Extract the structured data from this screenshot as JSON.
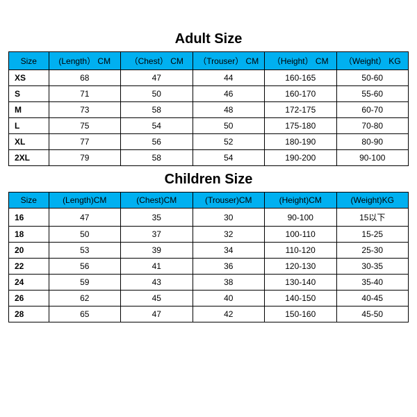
{
  "colors": {
    "header_bg": "#00b0f0",
    "border": "#000000",
    "text": "#000000",
    "background": "#ffffff"
  },
  "adult": {
    "title": "Adult Size",
    "columns": [
      "Size",
      "(Length） CM",
      "（Chest） CM",
      "（Trouser） CM",
      "（Height） CM",
      "（Weight） KG"
    ],
    "rows": [
      {
        "size": "XS",
        "length": "68",
        "chest": "47",
        "trouser": "44",
        "height": "160-165",
        "weight": "50-60"
      },
      {
        "size": "S",
        "length": "71",
        "chest": "50",
        "trouser": "46",
        "height": "160-170",
        "weight": "55-60"
      },
      {
        "size": "M",
        "length": "73",
        "chest": "58",
        "trouser": "48",
        "height": "172-175",
        "weight": "60-70"
      },
      {
        "size": "L",
        "length": "75",
        "chest": "54",
        "trouser": "50",
        "height": "175-180",
        "weight": "70-80"
      },
      {
        "size": "XL",
        "length": "77",
        "chest": "56",
        "trouser": "52",
        "height": "180-190",
        "weight": "80-90"
      },
      {
        "size": "2XL",
        "length": "79",
        "chest": "58",
        "trouser": "54",
        "height": "190-200",
        "weight": "90-100"
      }
    ]
  },
  "children": {
    "title": "Children Size",
    "columns": [
      "Size",
      "(Length)CM",
      "(Chest)CM",
      "(Trouser)CM",
      "(Height)CM",
      "(Weight)KG"
    ],
    "rows": [
      {
        "size": "16",
        "length": "47",
        "chest": "35",
        "trouser": "30",
        "height": "90-100",
        "weight": "15以下"
      },
      {
        "size": "18",
        "length": "50",
        "chest": "37",
        "trouser": "32",
        "height": "100-110",
        "weight": "15-25"
      },
      {
        "size": "20",
        "length": "53",
        "chest": "39",
        "trouser": "34",
        "height": "110-120",
        "weight": "25-30"
      },
      {
        "size": "22",
        "length": "56",
        "chest": "41",
        "trouser": "36",
        "height": "120-130",
        "weight": "30-35"
      },
      {
        "size": "24",
        "length": "59",
        "chest": "43",
        "trouser": "38",
        "height": "130-140",
        "weight": "35-40"
      },
      {
        "size": "26",
        "length": "62",
        "chest": "45",
        "trouser": "40",
        "height": "140-150",
        "weight": "40-45"
      },
      {
        "size": "28",
        "length": "65",
        "chest": "47",
        "trouser": "42",
        "height": "150-160",
        "weight": "45-50"
      }
    ]
  }
}
